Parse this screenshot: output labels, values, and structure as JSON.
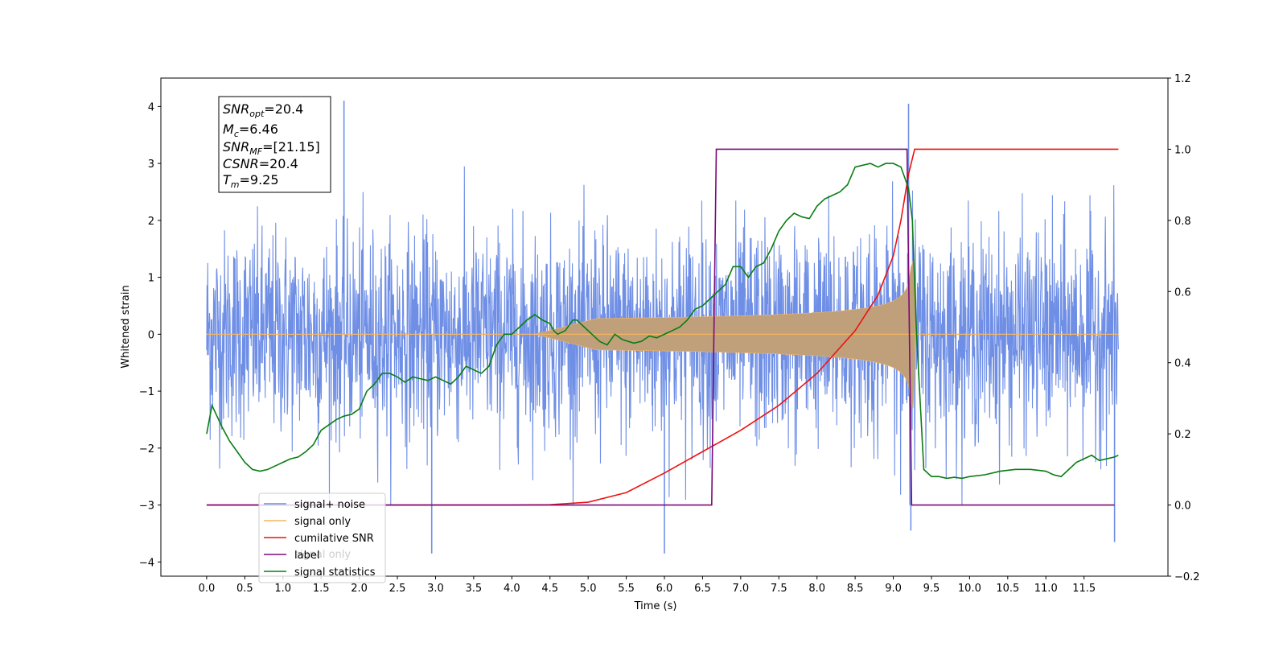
{
  "chart_data": {
    "type": "line",
    "xlabel": "Time (s)",
    "ylabel": "Whitened strain",
    "x_ticks": [
      "0.0",
      "0.5",
      "1.0",
      "1.5",
      "2.0",
      "2.5",
      "3.0",
      "3.5",
      "4.0",
      "4.5",
      "5.0",
      "5.5",
      "6.0",
      "6.5",
      "7.0",
      "7.5",
      "8.0",
      "8.5",
      "9.0",
      "9.5",
      "10.0",
      "10.5",
      "11.0",
      "11.5"
    ],
    "xlim": [
      -0.6,
      12.6
    ],
    "ylim_left": [
      -4.25,
      4.5
    ],
    "ylim_right": [
      -0.2,
      1.2
    ],
    "y_ticks_left": [
      "4",
      "3",
      "2",
      "1",
      "0",
      "−1",
      "−2",
      "−3",
      "−4"
    ],
    "y_ticks_right": [
      "1.2",
      "1.0",
      "0.8",
      "0.6",
      "0.4",
      "0.2",
      "0.0",
      "−0.2"
    ],
    "info_box": {
      "snr_opt": "=20.4",
      "mc": "=6.46",
      "snr_mf": "=[21.15]",
      "csnr": "=20.4",
      "tm": "=9.25"
    },
    "legend": {
      "placement": "lower-left",
      "entries": [
        "signal+ noise",
        "signal only",
        "cumilative SNR",
        "label",
        "signal statistics"
      ]
    },
    "overlay_text": "signal only",
    "colors": {
      "noise": "#6f8fe6",
      "signal": "#f5b560",
      "signal_fill": "#bfa07a",
      "cumulative_snr": "#ee1111",
      "label": "#7b0a78",
      "statistics": "#0a7d12"
    },
    "series": [
      {
        "name": "signal+ noise",
        "axis": "left",
        "description_x_range": [
          0.0,
          11.95
        ],
        "envelope_std": 0.9,
        "spikes": [
          [
            1.8,
            4.1
          ],
          [
            9.2,
            4.05
          ],
          [
            2.95,
            -3.85
          ],
          [
            6.0,
            -3.85
          ],
          [
            11.9,
            -3.65
          ],
          [
            9.23,
            -3.45
          ]
        ]
      },
      {
        "name": "signal only",
        "axis": "left",
        "x_range": [
          0.0,
          11.95
        ],
        "chirp_start": 4.3,
        "peak_time": 9.25,
        "peak_amplitude": 1.3
      },
      {
        "name": "cumilative SNR",
        "axis": "right",
        "points": [
          [
            0.0,
            0.0
          ],
          [
            4.0,
            0.0
          ],
          [
            4.5,
            0.001
          ],
          [
            5.0,
            0.008
          ],
          [
            5.5,
            0.035
          ],
          [
            6.0,
            0.09
          ],
          [
            6.5,
            0.15
          ],
          [
            7.0,
            0.21
          ],
          [
            7.5,
            0.28
          ],
          [
            8.0,
            0.37
          ],
          [
            8.5,
            0.49
          ],
          [
            8.8,
            0.59
          ],
          [
            9.0,
            0.7
          ],
          [
            9.1,
            0.8
          ],
          [
            9.2,
            0.93
          ],
          [
            9.28,
            1.0
          ],
          [
            11.95,
            1.0
          ]
        ]
      },
      {
        "name": "label",
        "axis": "right",
        "points": [
          [
            0.0,
            0.0
          ],
          [
            6.62,
            0.0
          ],
          [
            6.68,
            1.0
          ],
          [
            9.18,
            1.0
          ],
          [
            9.24,
            0.0
          ],
          [
            11.9,
            0.0
          ]
        ]
      },
      {
        "name": "signal statistics",
        "axis": "right",
        "points": [
          [
            0.0,
            0.2
          ],
          [
            0.07,
            0.28
          ],
          [
            0.2,
            0.22
          ],
          [
            0.3,
            0.18
          ],
          [
            0.4,
            0.15
          ],
          [
            0.5,
            0.12
          ],
          [
            0.6,
            0.1
          ],
          [
            0.7,
            0.095
          ],
          [
            0.8,
            0.1
          ],
          [
            0.9,
            0.11
          ],
          [
            1.0,
            0.12
          ],
          [
            1.1,
            0.13
          ],
          [
            1.2,
            0.135
          ],
          [
            1.3,
            0.15
          ],
          [
            1.4,
            0.17
          ],
          [
            1.5,
            0.21
          ],
          [
            1.6,
            0.225
          ],
          [
            1.7,
            0.24
          ],
          [
            1.8,
            0.25
          ],
          [
            1.9,
            0.255
          ],
          [
            2.0,
            0.27
          ],
          [
            2.1,
            0.32
          ],
          [
            2.2,
            0.34
          ],
          [
            2.3,
            0.37
          ],
          [
            2.4,
            0.37
          ],
          [
            2.5,
            0.36
          ],
          [
            2.6,
            0.345
          ],
          [
            2.7,
            0.36
          ],
          [
            2.8,
            0.355
          ],
          [
            2.9,
            0.35
          ],
          [
            3.0,
            0.36
          ],
          [
            3.1,
            0.35
          ],
          [
            3.2,
            0.34
          ],
          [
            3.3,
            0.36
          ],
          [
            3.4,
            0.39
          ],
          [
            3.5,
            0.38
          ],
          [
            3.6,
            0.37
          ],
          [
            3.7,
            0.39
          ],
          [
            3.8,
            0.45
          ],
          [
            3.9,
            0.48
          ],
          [
            4.0,
            0.48
          ],
          [
            4.1,
            0.5
          ],
          [
            4.2,
            0.52
          ],
          [
            4.3,
            0.535
          ],
          [
            4.4,
            0.52
          ],
          [
            4.5,
            0.51
          ],
          [
            4.55,
            0.49
          ],
          [
            4.6,
            0.48
          ],
          [
            4.7,
            0.49
          ],
          [
            4.8,
            0.52
          ],
          [
            4.85,
            0.52
          ],
          [
            4.95,
            0.5
          ],
          [
            5.05,
            0.48
          ],
          [
            5.15,
            0.46
          ],
          [
            5.25,
            0.45
          ],
          [
            5.35,
            0.48
          ],
          [
            5.45,
            0.465
          ],
          [
            5.6,
            0.455
          ],
          [
            5.7,
            0.46
          ],
          [
            5.8,
            0.475
          ],
          [
            5.9,
            0.47
          ],
          [
            6.0,
            0.48
          ],
          [
            6.1,
            0.49
          ],
          [
            6.2,
            0.5
          ],
          [
            6.3,
            0.52
          ],
          [
            6.4,
            0.55
          ],
          [
            6.5,
            0.56
          ],
          [
            6.6,
            0.58
          ],
          [
            6.7,
            0.6
          ],
          [
            6.8,
            0.62
          ],
          [
            6.9,
            0.67
          ],
          [
            7.0,
            0.67
          ],
          [
            7.1,
            0.64
          ],
          [
            7.2,
            0.67
          ],
          [
            7.3,
            0.68
          ],
          [
            7.4,
            0.72
          ],
          [
            7.5,
            0.77
          ],
          [
            7.6,
            0.8
          ],
          [
            7.7,
            0.82
          ],
          [
            7.8,
            0.81
          ],
          [
            7.9,
            0.805
          ],
          [
            8.0,
            0.84
          ],
          [
            8.1,
            0.86
          ],
          [
            8.2,
            0.87
          ],
          [
            8.3,
            0.88
          ],
          [
            8.4,
            0.9
          ],
          [
            8.5,
            0.95
          ],
          [
            8.6,
            0.955
          ],
          [
            8.7,
            0.96
          ],
          [
            8.8,
            0.95
          ],
          [
            8.9,
            0.96
          ],
          [
            9.0,
            0.96
          ],
          [
            9.1,
            0.95
          ],
          [
            9.2,
            0.89
          ],
          [
            9.25,
            0.8
          ],
          [
            9.3,
            0.5
          ],
          [
            9.35,
            0.3
          ],
          [
            9.4,
            0.1
          ],
          [
            9.5,
            0.08
          ],
          [
            9.6,
            0.08
          ],
          [
            9.7,
            0.075
          ],
          [
            9.8,
            0.078
          ],
          [
            9.9,
            0.075
          ],
          [
            10.0,
            0.08
          ],
          [
            10.2,
            0.085
          ],
          [
            10.4,
            0.095
          ],
          [
            10.6,
            0.1
          ],
          [
            10.8,
            0.1
          ],
          [
            11.0,
            0.095
          ],
          [
            11.1,
            0.085
          ],
          [
            11.2,
            0.08
          ],
          [
            11.3,
            0.1
          ],
          [
            11.4,
            0.12
          ],
          [
            11.5,
            0.13
          ],
          [
            11.6,
            0.14
          ],
          [
            11.7,
            0.125
          ],
          [
            11.8,
            0.13
          ],
          [
            11.9,
            0.135
          ],
          [
            11.95,
            0.14
          ]
        ]
      }
    ]
  }
}
